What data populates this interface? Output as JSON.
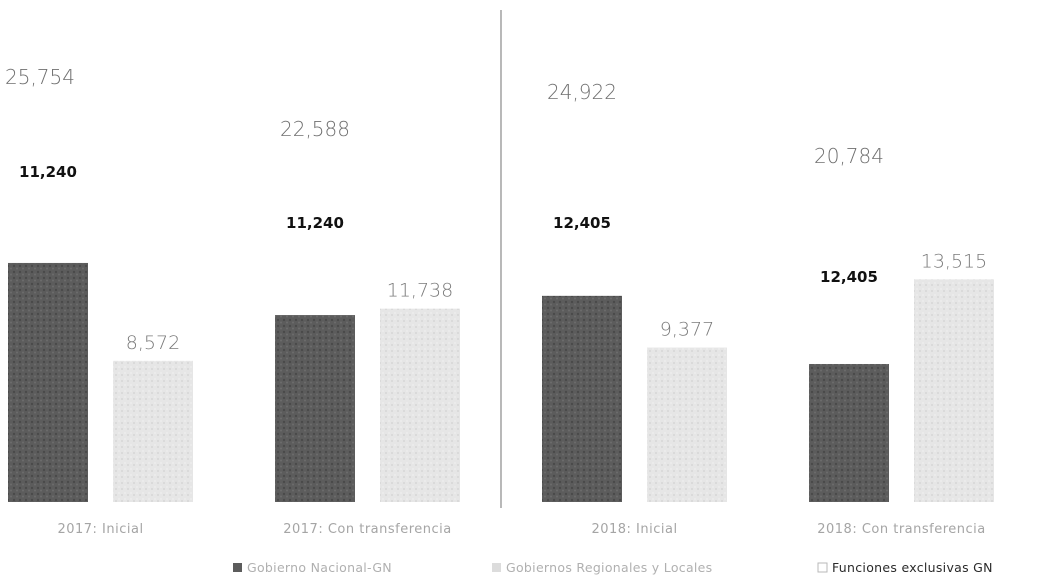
{
  "chart_data": {
    "type": "bar",
    "title": "",
    "xlabel": "",
    "ylabel": "",
    "ylim": [
      0,
      26000
    ],
    "grid": false,
    "legend_position": "bottom-right",
    "categories": [
      "2017: Inicial",
      "2017: Con transferencia",
      "2018: Inicial",
      "2018: Con transferencia"
    ],
    "totals": [
      25754,
      22588,
      24922,
      20784
    ],
    "total_labels": [
      "25,754",
      "22,588",
      "24,922",
      "20,784"
    ],
    "series": [
      {
        "name": "Gobierno Nacional-GN",
        "kind": "bar",
        "values": [
          14514,
          11350,
          12517,
          8379
        ],
        "color": "#5c5c5c"
      },
      {
        "name": "Gobiernos Regionales y Locales",
        "kind": "bar",
        "values": [
          8572,
          11738,
          9377,
          13515
        ],
        "value_labels": [
          "8,572",
          "11,738",
          "9,377",
          "13,515"
        ],
        "color": "#e6e6e6"
      },
      {
        "name": "Funciones exclusivas GN",
        "kind": "label",
        "values": [
          11240,
          11240,
          12405,
          12405
        ],
        "value_labels": [
          "11,240",
          "11,240",
          "12,405",
          "12,405"
        ],
        "color": "#ffffff"
      }
    ],
    "separator_between": [
      "2017: Con transferencia",
      "2018: Inicial"
    ]
  }
}
